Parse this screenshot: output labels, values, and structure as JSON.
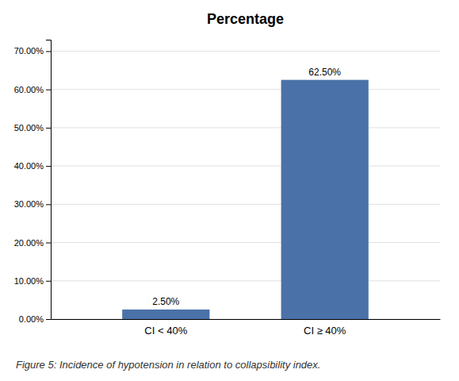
{
  "chart_data": {
    "type": "bar",
    "title": "Percentage",
    "categories": [
      "CI < 40%",
      "CI ≥ 40%"
    ],
    "values": [
      2.5,
      62.5
    ],
    "value_labels": [
      "2.50%",
      "62.50%"
    ],
    "data_labels": true,
    "color": "#4a72a8",
    "ylim": [
      0,
      73
    ],
    "yticks": [
      {
        "value": 0,
        "label": "0.00%"
      },
      {
        "value": 10,
        "label": "10.00%"
      },
      {
        "value": 20,
        "label": "20.00%"
      },
      {
        "value": 30,
        "label": "30.00%"
      },
      {
        "value": 40,
        "label": "40.00%"
      },
      {
        "value": 50,
        "label": "50.00%"
      },
      {
        "value": 60,
        "label": "60.00%"
      },
      {
        "value": 70,
        "label": "70.00%"
      }
    ],
    "grid": true,
    "caption": "Figure 5:  Incidence of hypotension in relation to collapsibility index."
  }
}
